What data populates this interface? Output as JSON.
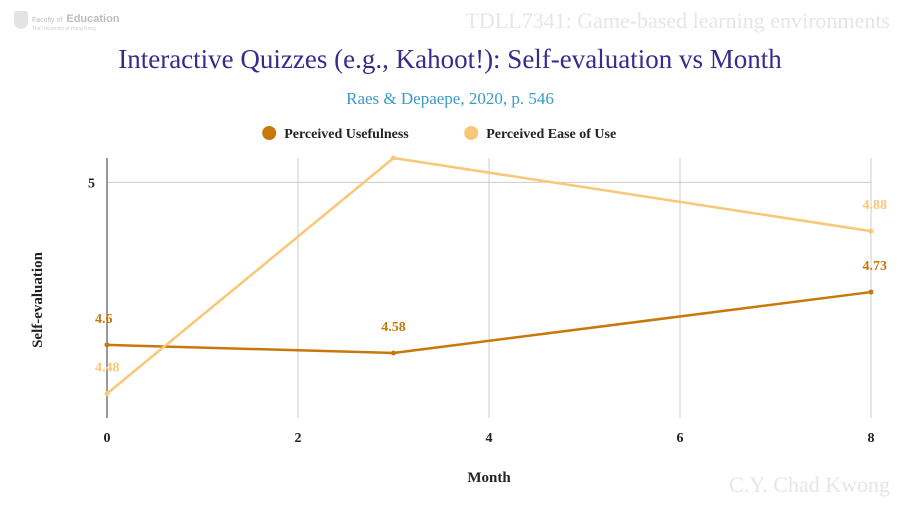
{
  "header": {
    "logo_small": "Faculty of",
    "logo_big": "Education",
    "logo_sub": "The University of Hong Kong",
    "course": "TDLL7341: Game-based learning environments"
  },
  "footer": {
    "author": "C.Y. Chad Kwong"
  },
  "chart_data": {
    "type": "line",
    "title": "Interactive Quizzes (e.g., Kahoot!): Self-evaluation vs Month",
    "subtitle": "Raes & Depaepe, 2020, p. 546",
    "xlabel": "Month",
    "ylabel": "Self-evaluation",
    "xlim": [
      0,
      8
    ],
    "ylim": [
      4.42,
      5.06
    ],
    "x_ticks": [
      0,
      2,
      4,
      6,
      8
    ],
    "y_ticks": [
      5
    ],
    "grid": true,
    "legend_position": "top",
    "series": [
      {
        "name": "Perceived Usefulness",
        "color": "#c8780a",
        "points": [
          {
            "x": 0,
            "y": 4.6,
            "label": "4.6"
          },
          {
            "x": 3,
            "y": 4.58,
            "label": "4.58"
          },
          {
            "x": 8,
            "y": 4.73,
            "label": "4.73"
          }
        ]
      },
      {
        "name": "Perceived Ease of Use",
        "color": "#f9c778",
        "points": [
          {
            "x": 0,
            "y": 4.48,
            "label": "4.48"
          },
          {
            "x": 3,
            "y": 5.06,
            "label": ""
          },
          {
            "x": 8,
            "y": 4.88,
            "label": "4.88"
          }
        ]
      }
    ]
  }
}
